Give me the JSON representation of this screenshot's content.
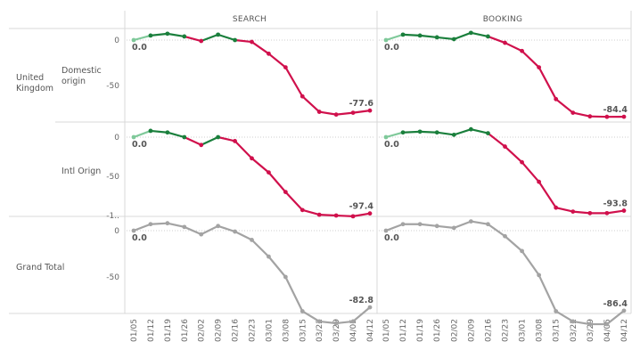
{
  "column_headers": [
    "SEARCH",
    "BOOKING"
  ],
  "row_groups": [
    {
      "label_lines": [
        "United",
        "Kingdom"
      ]
    },
    {
      "label_lines": [
        "Grand Total"
      ]
    }
  ],
  "sub_rows": [
    {
      "label_lines": [
        "Domestic",
        "origin"
      ]
    },
    {
      "label_lines": [
        "Intl Orign"
      ]
    },
    {
      "label_lines": []
    }
  ],
  "y_ticks": [
    [
      "0",
      "-50"
    ],
    [
      "0",
      "-50",
      "-1.."
    ],
    [
      "0",
      "-50"
    ]
  ],
  "colors": {
    "positive": "#1a7f3c",
    "negative": "#d0104c",
    "total": "#a3a3a3",
    "light_start": "#7fc99a"
  },
  "chart_data": {
    "type": "line",
    "categories": [
      "01/05",
      "01/12",
      "01/19",
      "01/26",
      "02/02",
      "02/09",
      "02/16",
      "02/23",
      "03/01",
      "03/08",
      "03/15",
      "03/22",
      "03/29",
      "04/05",
      "04/12"
    ],
    "panels": [
      {
        "row": "United Kingdom",
        "sub": "Domestic origin",
        "column": "SEARCH",
        "values": [
          0.0,
          5,
          7,
          4,
          -1,
          6,
          0,
          -2,
          -15,
          -30,
          -62,
          -79,
          -82,
          -80,
          -77.6
        ],
        "start_label": "0.0",
        "end_label": "-77.6"
      },
      {
        "row": "United Kingdom",
        "sub": "Domestic origin",
        "column": "BOOKING",
        "values": [
          0.0,
          6,
          5,
          3,
          1,
          8,
          4,
          -3,
          -12,
          -30,
          -65,
          -80,
          -84,
          -84.5,
          -84.4
        ],
        "start_label": "0.0",
        "end_label": "-84.4"
      },
      {
        "row": "United Kingdom",
        "sub": "Intl Orign",
        "column": "SEARCH",
        "values": [
          0.0,
          8,
          6,
          0,
          -10,
          0,
          -5,
          -27,
          -45,
          -70,
          -93,
          -99,
          -100,
          -101,
          -97.4
        ],
        "start_label": "0.0",
        "end_label": "-97.4"
      },
      {
        "row": "United Kingdom",
        "sub": "Intl Orign",
        "column": "BOOKING",
        "values": [
          0.0,
          6,
          7,
          6,
          3,
          10,
          5,
          -12,
          -32,
          -57,
          -90,
          -95,
          -97,
          -97,
          -93.8
        ],
        "start_label": "0.0",
        "end_label": "-93.8"
      },
      {
        "row": "Grand Total",
        "sub": "",
        "column": "SEARCH",
        "values": [
          0.0,
          7,
          8,
          4,
          -4,
          5,
          -1,
          -10,
          -28,
          -50,
          -87,
          -98,
          -100,
          -98,
          -82.8
        ],
        "start_label": "0.0",
        "end_label": "-82.8"
      },
      {
        "row": "Grand Total",
        "sub": "",
        "column": "BOOKING",
        "values": [
          0.0,
          7,
          7,
          5,
          3,
          10,
          7,
          -6,
          -22,
          -48,
          -87,
          -98,
          -101,
          -101,
          -86.4
        ],
        "start_label": "0.0",
        "end_label": "-86.4"
      }
    ]
  }
}
